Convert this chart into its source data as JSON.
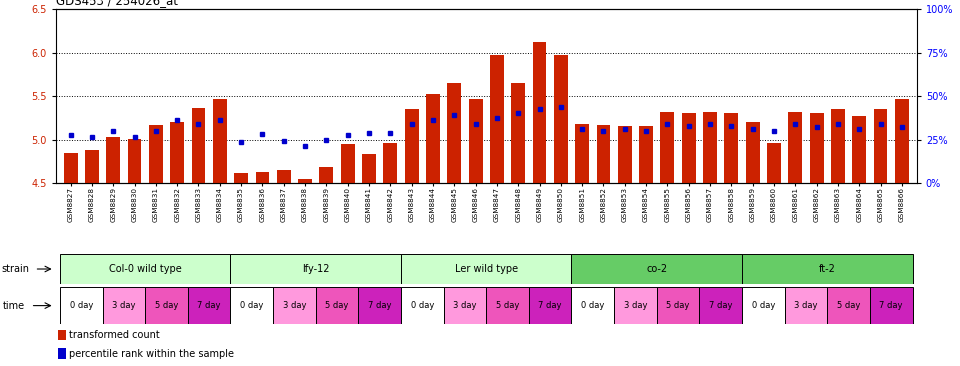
{
  "title": "GDS453 / 254026_at",
  "samples": [
    "GSM8827",
    "GSM8828",
    "GSM8829",
    "GSM8830",
    "GSM8831",
    "GSM8832",
    "GSM8833",
    "GSM8834",
    "GSM8835",
    "GSM8836",
    "GSM8837",
    "GSM8838",
    "GSM8839",
    "GSM8840",
    "GSM8841",
    "GSM8842",
    "GSM8843",
    "GSM8844",
    "GSM8845",
    "GSM8846",
    "GSM8847",
    "GSM8848",
    "GSM8849",
    "GSM8850",
    "GSM8851",
    "GSM8852",
    "GSM8853",
    "GSM8854",
    "GSM8855",
    "GSM8856",
    "GSM8857",
    "GSM8858",
    "GSM8859",
    "GSM8860",
    "GSM8861",
    "GSM8862",
    "GSM8863",
    "GSM8864",
    "GSM8865",
    "GSM8866"
  ],
  "red_values": [
    4.85,
    4.88,
    5.03,
    5.01,
    5.17,
    5.2,
    5.36,
    5.47,
    4.62,
    4.63,
    4.65,
    4.55,
    4.68,
    4.95,
    4.83,
    4.96,
    5.35,
    5.52,
    5.65,
    5.47,
    5.97,
    5.65,
    6.12,
    5.97,
    5.18,
    5.17,
    5.15,
    5.15,
    5.32,
    5.3,
    5.32,
    5.3,
    5.2,
    4.96,
    5.32,
    5.3,
    5.35,
    5.27,
    5.35,
    5.47
  ],
  "blue_values": [
    5.05,
    5.03,
    5.1,
    5.03,
    5.1,
    5.22,
    5.18,
    5.22,
    4.97,
    5.06,
    4.98,
    4.93,
    5.0,
    5.05,
    5.08,
    5.07,
    5.18,
    5.22,
    5.28,
    5.18,
    5.25,
    5.3,
    5.35,
    5.38,
    5.12,
    5.1,
    5.12,
    5.1,
    5.18,
    5.15,
    5.18,
    5.16,
    5.12,
    5.1,
    5.18,
    5.14,
    5.18,
    5.12,
    5.18,
    5.14
  ],
  "strains": [
    {
      "label": "Col-0 wild type",
      "start": 0,
      "end": 8,
      "color": "#ccffcc"
    },
    {
      "label": "lfy-12",
      "start": 8,
      "end": 16,
      "color": "#ccffcc"
    },
    {
      "label": "Ler wild type",
      "start": 16,
      "end": 24,
      "color": "#ccffcc"
    },
    {
      "label": "co-2",
      "start": 24,
      "end": 32,
      "color": "#66cc66"
    },
    {
      "label": "ft-2",
      "start": 32,
      "end": 40,
      "color": "#66cc66"
    }
  ],
  "time_groups": [
    {
      "label": "0 day",
      "color": "#ffffff"
    },
    {
      "label": "3 day",
      "color": "#ff99dd"
    },
    {
      "label": "5 day",
      "color": "#ee55bb"
    },
    {
      "label": "7 day",
      "color": "#cc22bb"
    }
  ],
  "ylim_left": [
    4.5,
    6.5
  ],
  "ylim_right": [
    0,
    100
  ],
  "yticks_left": [
    4.5,
    5.0,
    5.5,
    6.0,
    6.5
  ],
  "yticks_right": [
    0,
    25,
    50,
    75,
    100
  ],
  "ytick_labels_right": [
    "0%",
    "25%",
    "50%",
    "75%",
    "100%"
  ],
  "hlines": [
    5.0,
    5.5,
    6.0
  ],
  "bar_color": "#cc2200",
  "dot_color": "#0000cc",
  "bar_width": 0.65,
  "legend_items": [
    {
      "color": "#cc2200",
      "label": "transformed count"
    },
    {
      "color": "#0000cc",
      "label": "percentile rank within the sample"
    }
  ]
}
